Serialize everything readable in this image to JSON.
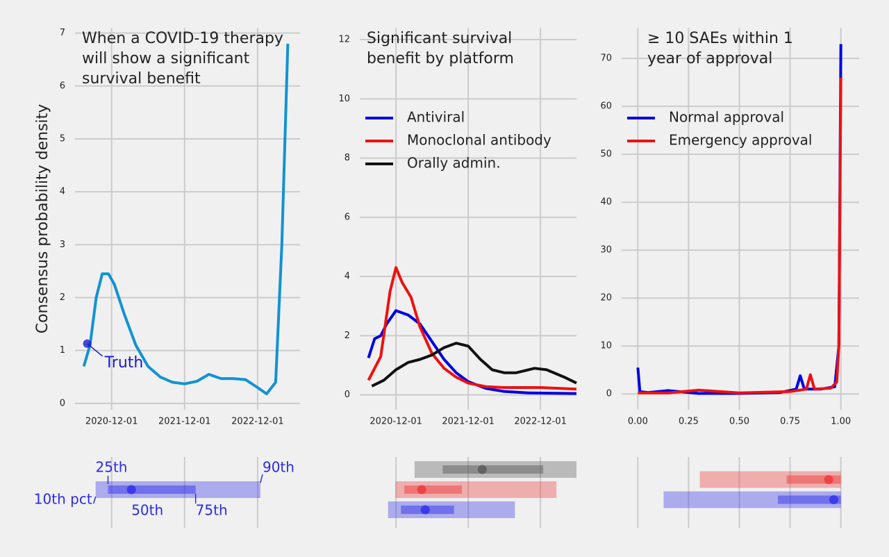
{
  "chart_data": [
    {
      "type": "line",
      "title": [
        "When a COVID-19 therapy",
        "will show a significant",
        "survival benefit"
      ],
      "y_label": "Consensus probability density",
      "xlim": [
        "2020-06-01",
        "2023-07-01"
      ],
      "ylim": [
        -0.12,
        7.1
      ],
      "xticks": [
        "2020-12-01",
        "2021-12-01",
        "2022-12-01"
      ],
      "yticks": [
        0,
        1,
        2,
        3,
        4,
        5,
        6,
        7
      ],
      "grid": true,
      "series": [
        {
          "color": "#1192d4",
          "x": [
            "2020-07-15",
            "2020-08-15",
            "2020-09-15",
            "2020-10-15",
            "2020-11-15",
            "2020-12-15",
            "2021-02-01",
            "2021-04-01",
            "2021-06-01",
            "2021-08-01",
            "2021-10-01",
            "2021-12-01",
            "2022-02-01",
            "2022-04-01",
            "2022-06-01",
            "2022-08-01",
            "2022-10-01",
            "2022-12-01",
            "2023-01-15",
            "2023-03-01",
            "2023-04-01",
            "2023-05-01"
          ],
          "values": [
            0.7,
            1.1,
            2.0,
            2.45,
            2.45,
            2.25,
            1.7,
            1.1,
            0.7,
            0.5,
            0.4,
            0.37,
            0.42,
            0.55,
            0.47,
            0.47,
            0.45,
            0.3,
            0.18,
            0.4,
            3.0,
            6.8
          ]
        }
      ],
      "annotation": {
        "text": "Truth",
        "x": "2020-08-01",
        "y": 1.13,
        "color": "#1a1ad0"
      },
      "interval_labels": {
        "p10": "10th pct",
        "p25": "25th",
        "p50": "50th",
        "p75": "75th",
        "p90": "90th"
      },
      "intervals": [
        {
          "color": "#2a2ae8",
          "p10": "2020-09-12",
          "p25": "2020-11-13",
          "p50": "2021-03-10",
          "p75": "2022-01-25",
          "p90": "2022-12-15"
        }
      ]
    },
    {
      "type": "line",
      "title": [
        "Significant survival",
        "benefit by platform"
      ],
      "xlim": [
        "2020-06-01",
        "2023-06-01"
      ],
      "ylim": [
        -0.5,
        12.4
      ],
      "xticks": [
        "2020-12-01",
        "2021-12-01",
        "2022-12-01"
      ],
      "yticks": [
        0,
        2,
        4,
        6,
        8,
        10,
        12
      ],
      "grid": true,
      "legend": "upper left",
      "series": [
        {
          "name": "Antiviral",
          "color": "#0000e6",
          "x": [
            "2020-07-15",
            "2020-08-15",
            "2020-09-15",
            "2020-10-15",
            "2020-12-01",
            "2021-02-01",
            "2021-04-01",
            "2021-06-01",
            "2021-08-01",
            "2021-10-01",
            "2021-12-01",
            "2022-03-01",
            "2022-06-01",
            "2022-10-01",
            "2023-06-01"
          ],
          "values": [
            1.25,
            1.9,
            2.0,
            2.4,
            2.85,
            2.7,
            2.4,
            1.8,
            1.2,
            0.75,
            0.45,
            0.22,
            0.12,
            0.07,
            0.05
          ]
        },
        {
          "name": "Monoclonal antibody",
          "color": "#ee1111",
          "x": [
            "2020-07-15",
            "2020-09-15",
            "2020-11-01",
            "2020-12-01",
            "2021-01-01",
            "2021-02-15",
            "2021-04-01",
            "2021-06-01",
            "2021-08-01",
            "2021-10-01",
            "2021-12-01",
            "2022-03-01",
            "2022-06-01",
            "2022-12-01",
            "2023-06-01"
          ],
          "values": [
            0.5,
            1.3,
            3.5,
            4.3,
            3.8,
            3.3,
            2.3,
            1.4,
            0.9,
            0.6,
            0.4,
            0.28,
            0.25,
            0.25,
            0.2
          ]
        },
        {
          "name": "Orally admin.",
          "color": "#111111",
          "x": [
            "2020-08-01",
            "2020-10-01",
            "2020-12-01",
            "2021-02-01",
            "2021-04-01",
            "2021-06-01",
            "2021-08-01",
            "2021-10-01",
            "2021-12-01",
            "2022-02-01",
            "2022-04-01",
            "2022-06-01",
            "2022-08-01",
            "2022-11-01",
            "2023-01-01",
            "2023-04-01",
            "2023-06-01"
          ],
          "values": [
            0.3,
            0.5,
            0.85,
            1.1,
            1.2,
            1.35,
            1.6,
            1.75,
            1.65,
            1.2,
            0.85,
            0.75,
            0.75,
            0.9,
            0.85,
            0.6,
            0.4
          ]
        }
      ],
      "intervals": [
        {
          "color": "#555555",
          "p10": "2021-03-05",
          "p25": "2021-07-25",
          "p50": "2022-02-10",
          "p75": "2022-12-15",
          "p90": "2023-06-01"
        },
        {
          "color": "#ee3333",
          "p10": "2020-11-28",
          "p25": "2021-01-12",
          "p50": "2021-04-10",
          "p75": "2021-10-30",
          "p90": "2023-02-20"
        },
        {
          "color": "#2a2ae8",
          "p10": "2020-10-22",
          "p25": "2020-12-26",
          "p50": "2021-04-28",
          "p75": "2021-09-20",
          "p90": "2022-07-25"
        }
      ]
    },
    {
      "type": "line",
      "title": [
        "≥  10 SAEs within 1",
        "year of approval"
      ],
      "xlim": [
        -0.08,
        1.09
      ],
      "ylim": [
        -3.3,
        76.4
      ],
      "xticks": [
        {
          "value": 0,
          "label": "0.00"
        },
        0.25,
        {
          "value": 0.5,
          "label": "0.50"
        },
        0.75,
        {
          "value": 1,
          "label": "1.00"
        }
      ],
      "yticks": [
        0,
        10,
        20,
        30,
        40,
        50,
        60,
        70
      ],
      "grid": true,
      "legend": "upper left",
      "series": [
        {
          "name": "Normal approval",
          "color": "#0000e6",
          "x": [
            0,
            0.01,
            0.05,
            0.15,
            0.3,
            0.5,
            0.7,
            0.78,
            0.8,
            0.82,
            0.9,
            0.97,
            0.99,
            1.0
          ],
          "values": [
            5.5,
            0.5,
            0.3,
            0.7,
            0.1,
            0.1,
            0.3,
            1,
            3.8,
            1,
            1,
            1.5,
            10,
            73
          ]
        },
        {
          "name": "Emergency approval",
          "color": "#ee1111",
          "x": [
            0,
            0.15,
            0.3,
            0.5,
            0.75,
            0.83,
            0.85,
            0.87,
            0.95,
            0.98,
            0.99,
            1.0
          ],
          "values": [
            0.2,
            0.2,
            0.8,
            0.2,
            0.5,
            1,
            4,
            1,
            1.2,
            2.5,
            10,
            66
          ]
        }
      ],
      "intervals": [
        {
          "color": "#ee3333",
          "p10": 0.305,
          "p25": 0.733,
          "p50": 0.94,
          "p75": 1.0,
          "p90": 1.0
        },
        {
          "color": "#2a2ae8",
          "p10": 0.127,
          "p25": 0.69,
          "p50": 0.965,
          "p75": 1.0,
          "p90": 1.0
        }
      ]
    }
  ]
}
